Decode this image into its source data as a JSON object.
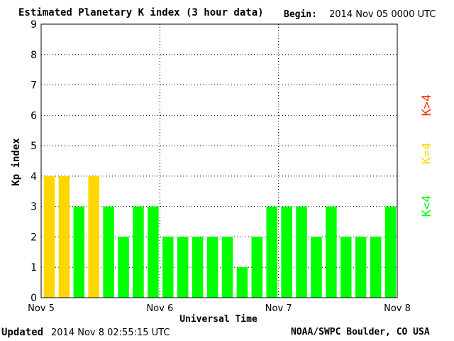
{
  "header": {
    "title": "Estimated Planetary K index (3 hour data)",
    "begin_label": "Begin:",
    "begin_value": "2014 Nov 05 0000 UTC"
  },
  "footer": {
    "updated_label": "Updated",
    "updated_value": "2014 Nov  8 02:55:15 UTC",
    "credit": "NOAA/SWPC Boulder, CO USA"
  },
  "legend": {
    "above": "K>4",
    "equal": "K=4",
    "below": "K<4"
  },
  "colors": {
    "below": "#00ff00",
    "equal": "#ffd700",
    "above": "#ff2a00",
    "axis": "#000000",
    "grid": "#000000"
  },
  "chart_data": {
    "type": "bar",
    "title": "Estimated Planetary K index (3 hour data)",
    "xlabel": "Universal Time",
    "ylabel": "Kp index",
    "ylim": [
      0,
      9
    ],
    "y_ticks": [
      "0",
      "1",
      "2",
      "3",
      "4",
      "5",
      "6",
      "7",
      "8",
      "9"
    ],
    "x_ticks": [
      "Nov 5",
      "Nov 6",
      "Nov 7",
      "Nov 8"
    ],
    "grid": true,
    "legend_placement": "right",
    "interval_hours": 3,
    "values": [
      4,
      4,
      3,
      4,
      3,
      2,
      3,
      3,
      2,
      2,
      2,
      2,
      2,
      1,
      2,
      3,
      3,
      3,
      2,
      3,
      2,
      2,
      2,
      3
    ]
  }
}
